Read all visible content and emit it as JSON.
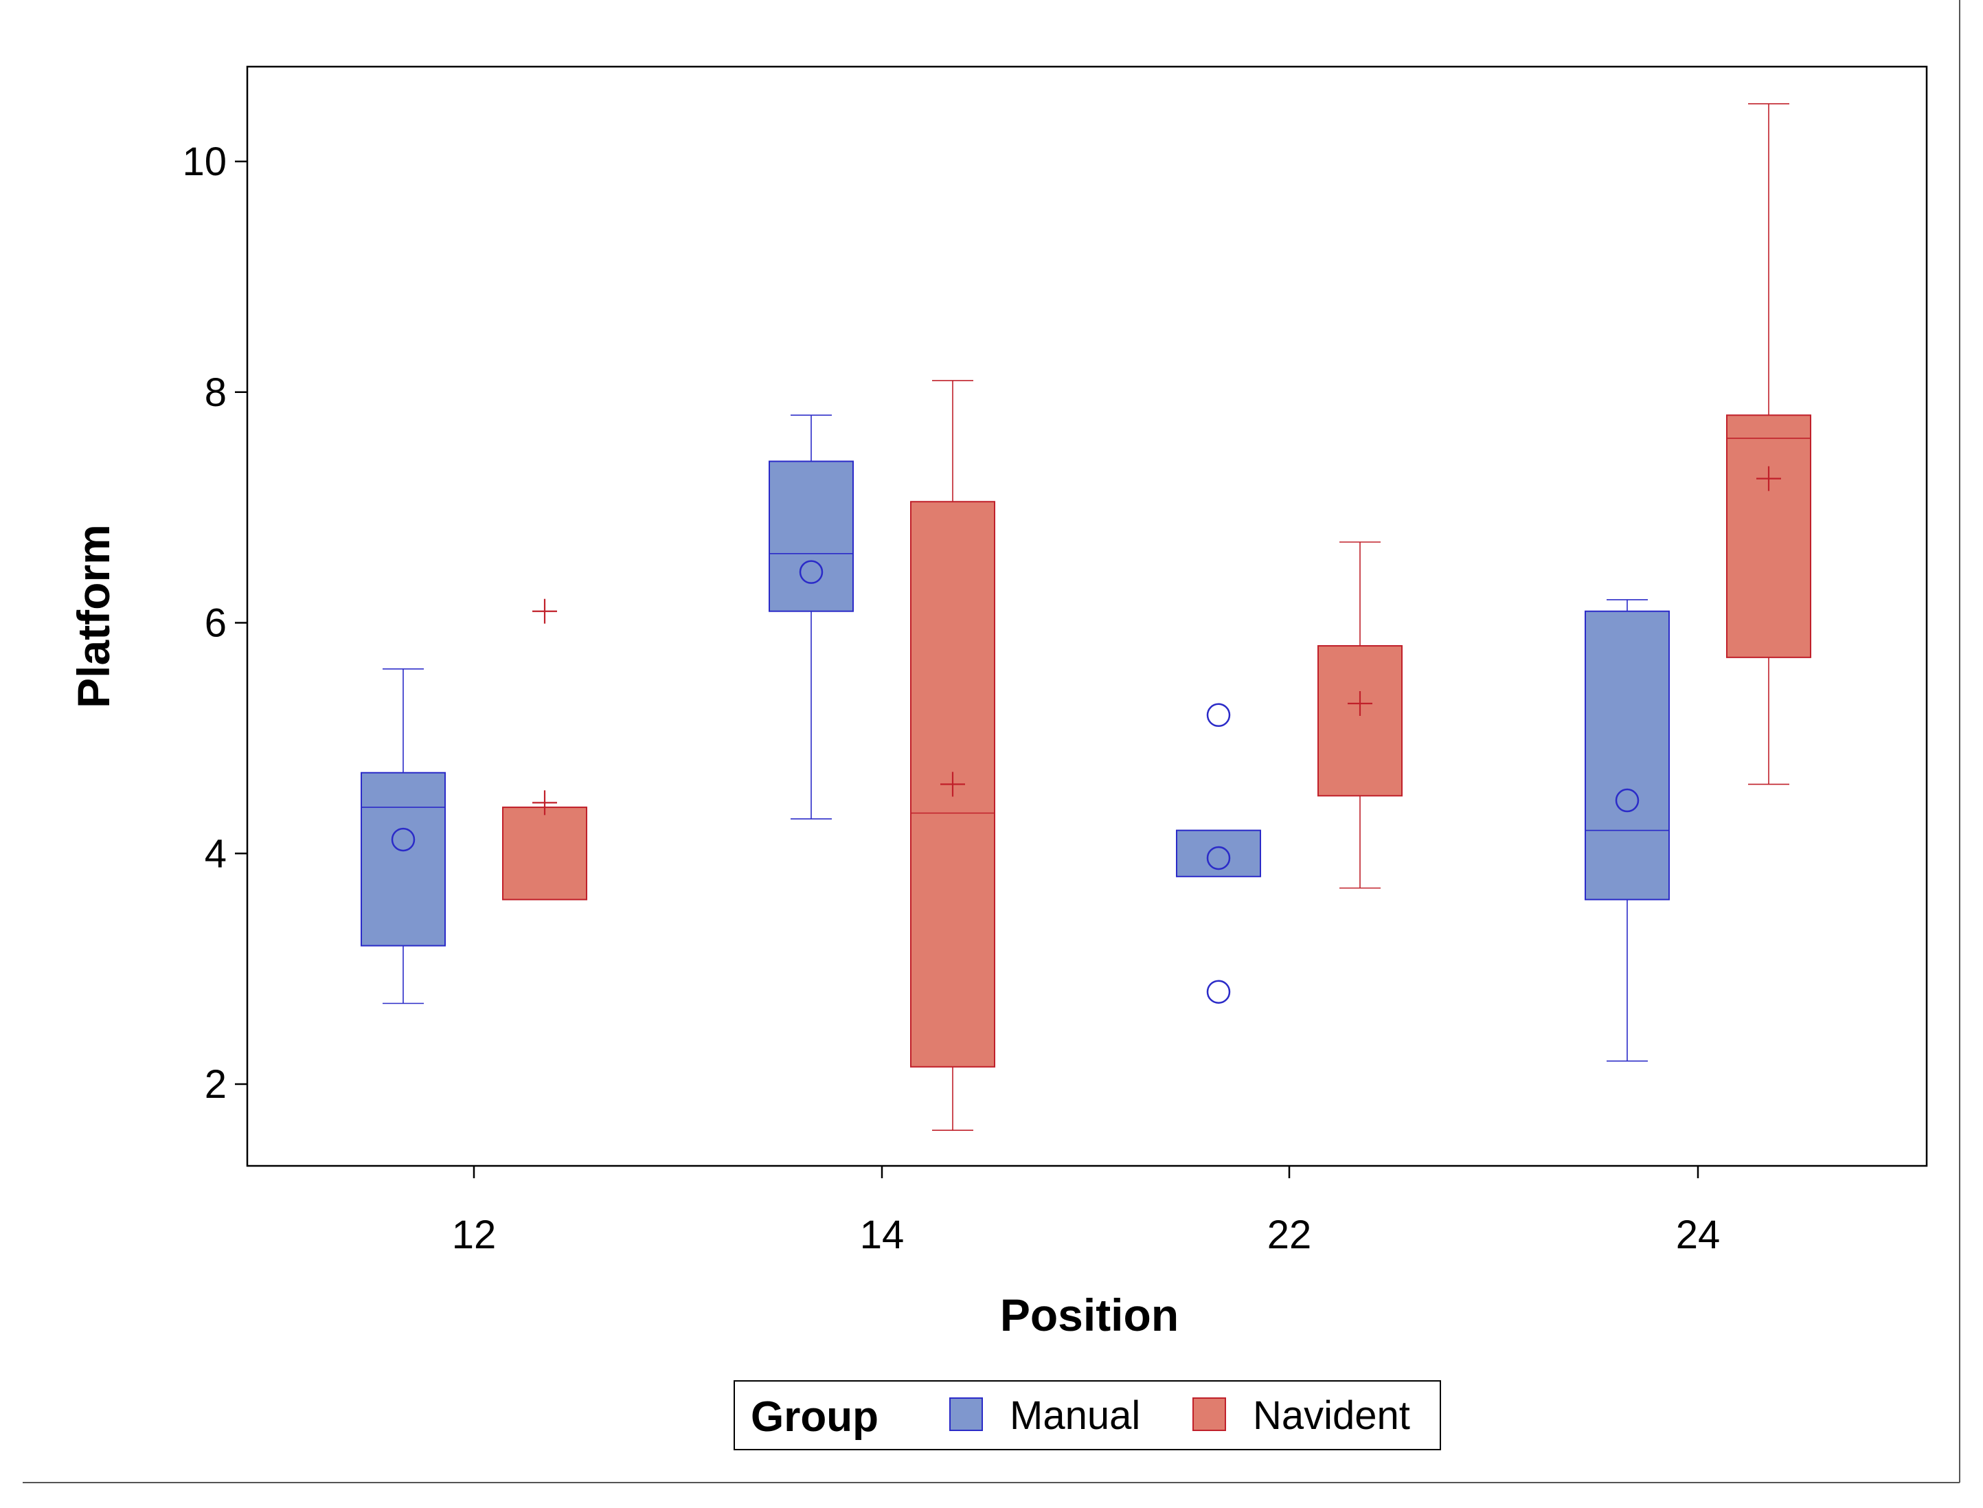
{
  "chart_data": {
    "type": "box",
    "xlabel": "Position",
    "ylabel": "Platform",
    "ylim": [
      1.3,
      10.8
    ],
    "yticks": [
      2,
      4,
      6,
      8,
      10
    ],
    "categories": [
      "12",
      "14",
      "22",
      "24"
    ],
    "legend": {
      "title": "Group",
      "position": "bottom-center",
      "entries": [
        {
          "name": "Manual",
          "fill": "#7F97CE",
          "stroke": "#2B2BC8"
        },
        {
          "name": "Navident",
          "fill": "#E07D6E",
          "stroke": "#C0202A"
        }
      ]
    },
    "series": [
      {
        "name": "Manual",
        "mean_marker": "circle",
        "fill": "#7F97CE",
        "stroke": "#2B2BC8",
        "boxes": [
          {
            "category": "12",
            "whisker_low": 2.7,
            "q1": 3.2,
            "median": 4.4,
            "q3": 4.7,
            "whisker_high": 5.6,
            "mean": 4.12,
            "outliers": []
          },
          {
            "category": "14",
            "whisker_low": 4.3,
            "q1": 6.1,
            "median": 6.6,
            "q3": 7.4,
            "whisker_high": 7.8,
            "mean": 6.44,
            "outliers": []
          },
          {
            "category": "22",
            "whisker_low": null,
            "q1": 3.8,
            "median": 4.2,
            "q3": 4.2,
            "whisker_high": null,
            "mean": 3.96,
            "outliers": [
              5.2,
              2.8
            ]
          },
          {
            "category": "24",
            "whisker_low": 2.2,
            "q1": 3.6,
            "median": 4.2,
            "q3": 6.1,
            "whisker_high": 6.2,
            "mean": 4.46,
            "outliers": []
          }
        ]
      },
      {
        "name": "Navident",
        "mean_marker": "plus",
        "fill": "#E07D6E",
        "stroke": "#C0202A",
        "boxes": [
          {
            "category": "12",
            "whisker_low": null,
            "q1": 3.6,
            "median": 4.4,
            "q3": 4.4,
            "whisker_high": 4.4,
            "mean": 4.44,
            "outliers": [
              6.1
            ]
          },
          {
            "category": "14",
            "whisker_low": 1.6,
            "q1": 2.15,
            "median": 4.35,
            "q3": 7.05,
            "whisker_high": 8.1,
            "mean": 4.6,
            "outliers": []
          },
          {
            "category": "22",
            "whisker_low": 3.7,
            "q1": 4.5,
            "median": 5.8,
            "q3": 5.8,
            "whisker_high": 6.7,
            "mean": 5.3,
            "outliers": []
          },
          {
            "category": "24",
            "whisker_low": 4.6,
            "q1": 5.7,
            "median": 7.6,
            "q3": 7.8,
            "whisker_high": 10.5,
            "mean": 7.25,
            "outliers": []
          }
        ]
      }
    ]
  }
}
